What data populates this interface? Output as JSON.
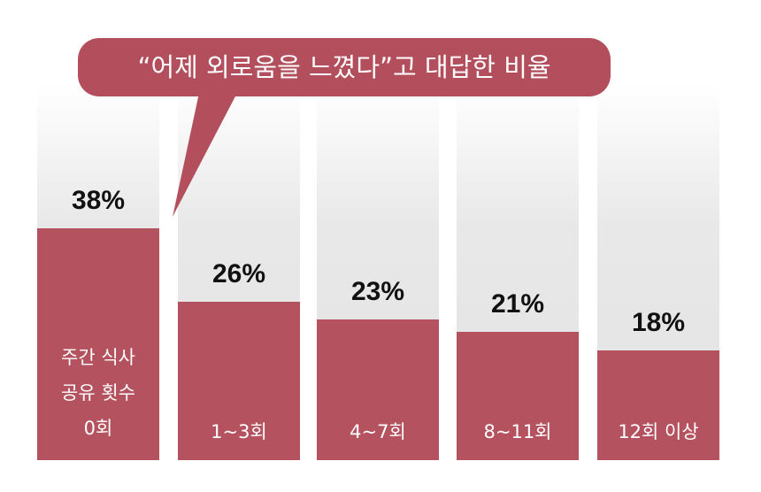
{
  "chart_data": {
    "type": "bar",
    "title": "“어제 외로움을 느꼈다”고 대답한 비율",
    "categories": [
      "주간 식사\n공유 횟수\n0회",
      "1~3회",
      "4~7회",
      "8~11회",
      "12회 이상"
    ],
    "values": [
      38,
      26,
      23,
      21,
      18
    ],
    "value_labels": [
      "38%",
      "26%",
      "23%",
      "21%",
      "18%"
    ],
    "color": "#b5525f"
  }
}
